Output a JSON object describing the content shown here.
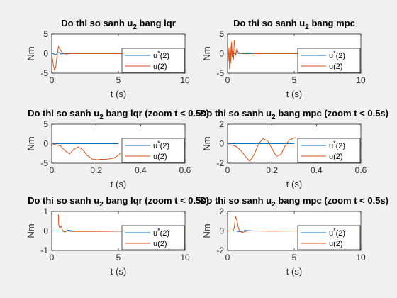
{
  "figure": {
    "background": "#f0f0f0"
  },
  "colors": {
    "u_star": "#0072bd",
    "u": "#d95319",
    "axis": "#262626"
  },
  "chart_data": [
    {
      "type": "line",
      "title": {
        "main": "Do thi so sanh u",
        "sub": "2",
        "rest": " bang lqr"
      },
      "xlabel": "t (s)",
      "ylabel": "Nm",
      "xlim": [
        0,
        10
      ],
      "ylim": [
        -5,
        5
      ],
      "xticks": [
        0,
        5,
        10
      ],
      "xticklabels": [
        "0",
        "5",
        "10"
      ],
      "yticks": [
        -5,
        0,
        5
      ],
      "yticklabels": [
        "-5",
        "0",
        "5"
      ],
      "legend": [
        "u*(2)",
        "u(2)"
      ],
      "series": [
        {
          "name": "u*(2)",
          "color": "#0072bd",
          "x": [
            0,
            0.1,
            0.3,
            0.5,
            0.7,
            1,
            1.5,
            3,
            6,
            10
          ],
          "y": [
            0,
            0,
            -0.3,
            0.3,
            -0.1,
            0,
            0,
            0,
            0,
            0
          ]
        },
        {
          "name": "u(2)",
          "color": "#d95319",
          "x": [
            0,
            0.05,
            0.1,
            0.2,
            0.3,
            0.4,
            0.5,
            0.6,
            0.8,
            1,
            1.5,
            2,
            3,
            6,
            10
          ],
          "y": [
            0,
            -1.2,
            -2.6,
            -4.2,
            -3.5,
            -0.5,
            1.8,
            1.2,
            0.2,
            -0.1,
            0,
            0,
            0,
            0,
            0
          ]
        }
      ]
    },
    {
      "type": "line",
      "title": {
        "main": "Do thi so sanh u",
        "sub": "2",
        "rest": " bang mpc"
      },
      "xlabel": "t (s)",
      "ylabel": "Nm",
      "xlim": [
        0,
        10
      ],
      "ylim": [
        -5,
        5
      ],
      "xticks": [
        0,
        5,
        10
      ],
      "xticklabels": [
        "0",
        "5",
        "10"
      ],
      "yticks": [
        -5,
        0,
        5
      ],
      "yticklabels": [
        "-5",
        "0",
        "5"
      ],
      "legend": [
        "u*(2)",
        "u(2)"
      ],
      "series": [
        {
          "name": "u*(2)",
          "color": "#0072bd",
          "x": [
            0,
            0.3,
            0.6,
            1,
            2,
            10
          ],
          "y": [
            0,
            -0.3,
            0.2,
            0,
            0,
            0
          ]
        },
        {
          "name": "u(2)",
          "color": "#d95319",
          "x": [
            0,
            0.05,
            0.1,
            0.15,
            0.2,
            0.25,
            0.3,
            0.35,
            0.4,
            0.45,
            0.5,
            0.55,
            0.6,
            0.7,
            0.8,
            1,
            1.5,
            2,
            3,
            6,
            10
          ],
          "y": [
            0,
            -2,
            1.5,
            -4,
            2,
            -2.5,
            3,
            -1,
            1,
            -1.5,
            3.5,
            2,
            -0.5,
            1.2,
            0.3,
            0,
            0.2,
            0,
            0,
            0,
            0
          ]
        }
      ]
    },
    {
      "type": "line",
      "title": {
        "main": "Do thi so sanh u",
        "sub": "2",
        "rest": " bang lqr (zoom t < 0.5s)"
      },
      "xlabel": "t (s)",
      "ylabel": "Nm",
      "xlim": [
        0,
        0.6
      ],
      "ylim": [
        -5,
        5
      ],
      "xticks": [
        0,
        0.2,
        0.4,
        0.6
      ],
      "xticklabels": [
        "0",
        "0.2",
        "0.4",
        "0.6"
      ],
      "yticks": [
        -5,
        0,
        5
      ],
      "yticklabels": [
        "-5",
        "0",
        "5"
      ],
      "legend": [
        "u*(2)",
        "u(2)"
      ],
      "series": [
        {
          "name": "u*(2)",
          "color": "#0072bd",
          "x": [
            0,
            0.3
          ],
          "y": [
            0,
            0
          ]
        },
        {
          "name": "u(2)",
          "color": "#d95319",
          "x": [
            0,
            0.02,
            0.04,
            0.06,
            0.08,
            0.1,
            0.12,
            0.14,
            0.16,
            0.18,
            0.2,
            0.22,
            0.24,
            0.26,
            0.28,
            0.3,
            0.31
          ],
          "y": [
            0,
            -0.3,
            -0.6,
            -1.8,
            -2.6,
            -1.4,
            -0.8,
            -1.6,
            -3,
            -3.9,
            -4.1,
            -4,
            -4,
            -3.9,
            -3.7,
            -3,
            -2.4
          ]
        }
      ]
    },
    {
      "type": "line",
      "title": {
        "main": "Do thi so sanh u",
        "sub": "2",
        "rest": " bang mpc (zoom t < 0.5s)"
      },
      "xlabel": "t (s)",
      "ylabel": "Nm",
      "xlim": [
        0,
        0.6
      ],
      "ylim": [
        -2,
        2
      ],
      "xticks": [
        0,
        0.2,
        0.4,
        0.6
      ],
      "xticklabels": [
        "0",
        "0.2",
        "0.4",
        "0.6"
      ],
      "yticks": [
        -2,
        0,
        2
      ],
      "yticklabels": [
        "-2",
        "0",
        "2"
      ],
      "legend": [
        "u*(2)",
        "u(2)"
      ],
      "series": [
        {
          "name": "u*(2)",
          "color": "#0072bd",
          "x": [
            0,
            0.3
          ],
          "y": [
            0,
            0
          ]
        },
        {
          "name": "u(2)",
          "color": "#d95319",
          "x": [
            0,
            0.02,
            0.04,
            0.06,
            0.08,
            0.1,
            0.12,
            0.14,
            0.16,
            0.18,
            0.2,
            0.22,
            0.24,
            0.26,
            0.28,
            0.3,
            0.31
          ],
          "y": [
            -0.1,
            -0.15,
            -0.3,
            -0.7,
            -1.3,
            -1.8,
            -1.1,
            0,
            0.5,
            0.3,
            -0.5,
            -1.3,
            -1.1,
            -0.2,
            0.4,
            0.6,
            0.6
          ]
        }
      ]
    },
    {
      "type": "line",
      "title": {
        "main": "Do thi so sanh u",
        "sub": "2",
        "rest": " bang lqr (zoom t < 0.5s)"
      },
      "xlabel": "t (s)",
      "ylabel": "Nm",
      "xlim": [
        0,
        10
      ],
      "ylim": [
        -1,
        1
      ],
      "xticks": [
        0,
        5,
        10
      ],
      "xticklabels": [
        "0",
        "5",
        "10"
      ],
      "yticks": [
        -1,
        0,
        1
      ],
      "yticklabels": [
        "-1",
        "0",
        "1"
      ],
      "legend": [
        "u*(2)",
        "u(2)"
      ],
      "series": [
        {
          "name": "u*(2)",
          "color": "#0072bd",
          "x": [
            0,
            0.8,
            1,
            1.2,
            1.6,
            2,
            10
          ],
          "y": [
            0,
            0,
            -0.05,
            0.04,
            0,
            0,
            0
          ]
        },
        {
          "name": "u(2)",
          "color": "#d95319",
          "x": [
            0.5,
            0.52,
            0.6,
            0.7,
            0.8,
            0.9,
            1,
            1.2,
            1.5,
            2,
            3,
            4,
            6,
            8,
            10
          ],
          "y": [
            0.85,
            0.3,
            0.15,
            0.25,
            0.05,
            -0.05,
            -0.02,
            0,
            -0.03,
            -0.02,
            -0.03,
            -0.02,
            -0.01,
            0,
            0
          ]
        }
      ]
    },
    {
      "type": "line",
      "title": {
        "main": "Do thi so sanh u",
        "sub": "2",
        "rest": " bang mpc (zoom t < 0.5s)"
      },
      "xlabel": "t (s)",
      "ylabel": "Nm",
      "xlim": [
        0,
        10
      ],
      "ylim": [
        -2,
        2
      ],
      "xticks": [
        0,
        5,
        10
      ],
      "xticklabels": [
        "0",
        "5",
        "10"
      ],
      "yticks": [
        -2,
        0,
        2
      ],
      "yticklabels": [
        "-2",
        "0",
        "2"
      ],
      "legend": [
        "u*(2)",
        "u(2)"
      ],
      "series": [
        {
          "name": "u*(2)",
          "color": "#0072bd",
          "x": [
            0,
            0.6,
            1,
            1.3,
            2,
            10
          ],
          "y": [
            0,
            0,
            -0.1,
            0.05,
            0,
            0
          ]
        },
        {
          "name": "u(2)",
          "color": "#d95319",
          "x": [
            0,
            0.4,
            0.5,
            0.6,
            0.7,
            0.8,
            0.9,
            1.1,
            1.5,
            2,
            3,
            6,
            10
          ],
          "y": [
            0,
            0,
            0.3,
            1.5,
            1.1,
            0.4,
            0,
            -0.15,
            0,
            0,
            -0.02,
            0,
            0
          ]
        }
      ]
    }
  ]
}
